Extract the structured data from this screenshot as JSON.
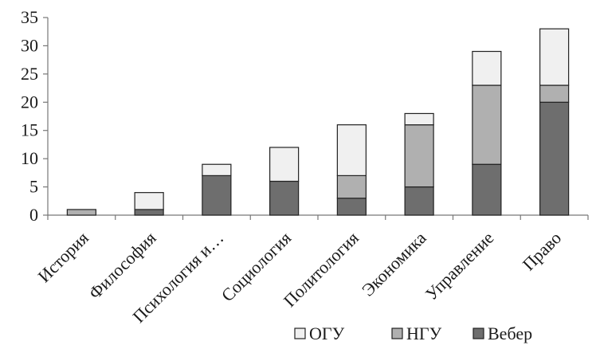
{
  "chart_data": {
    "type": "bar",
    "stacked": true,
    "categories": [
      "История",
      "Философия",
      "Психология и…",
      "Социология",
      "Политология",
      "Экономика",
      "Управление",
      "Право"
    ],
    "series": [
      {
        "name": "Вебер",
        "values": [
          0,
          1,
          7,
          6,
          3,
          5,
          9,
          20
        ],
        "color": "#6e6e6e"
      },
      {
        "name": "НГУ",
        "values": [
          1,
          0,
          0,
          0,
          4,
          11,
          14,
          3
        ],
        "color": "#b0b0b0"
      },
      {
        "name": "ОГУ",
        "values": [
          0,
          3,
          2,
          6,
          9,
          2,
          6,
          10
        ],
        "color": "#f0f0f0"
      }
    ],
    "legend_order": [
      "ОГУ",
      "НГУ",
      "Вебер"
    ],
    "ylim": [
      0,
      35
    ],
    "yticks": [
      0,
      5,
      10,
      15,
      20,
      25,
      30,
      35
    ],
    "grid": false,
    "legend_position": "bottom-right"
  }
}
